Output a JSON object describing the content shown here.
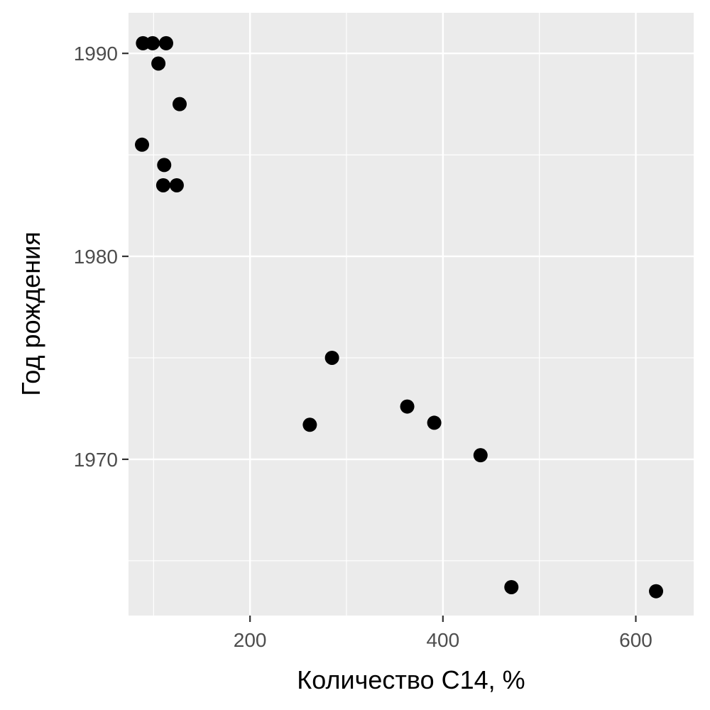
{
  "chart_data": {
    "type": "scatter",
    "title": "",
    "xlabel": "Количество С14, %",
    "ylabel": "Год рождения",
    "xlim": [
      74,
      660
    ],
    "ylim": [
      1962.3,
      1992.0
    ],
    "x_ticks": [
      {
        "value": 200,
        "label": "200"
      },
      {
        "value": 400,
        "label": "400"
      },
      {
        "value": 600,
        "label": "600"
      }
    ],
    "y_ticks": [
      {
        "value": 1970,
        "label": "1970"
      },
      {
        "value": 1980,
        "label": "1980"
      },
      {
        "value": 1990,
        "label": "1990"
      }
    ],
    "x_minor": [
      100,
      300,
      500
    ],
    "y_minor": [
      1965,
      1975,
      1985
    ],
    "grid": true,
    "panel_background": "#ebebeb",
    "grid_color": "#ffffff",
    "point_color": "#000000",
    "series": [
      {
        "points": [
          {
            "x": 89,
            "y": 1990.5
          },
          {
            "x": 99,
            "y": 1990.5
          },
          {
            "x": 113,
            "y": 1990.5
          },
          {
            "x": 105,
            "y": 1989.5
          },
          {
            "x": 127,
            "y": 1987.5
          },
          {
            "x": 88,
            "y": 1985.5
          },
          {
            "x": 111,
            "y": 1984.5
          },
          {
            "x": 110,
            "y": 1983.5
          },
          {
            "x": 124,
            "y": 1983.5
          },
          {
            "x": 285,
            "y": 1975.0
          },
          {
            "x": 262,
            "y": 1971.7
          },
          {
            "x": 363,
            "y": 1972.6
          },
          {
            "x": 391,
            "y": 1971.8
          },
          {
            "x": 439,
            "y": 1970.2
          },
          {
            "x": 471,
            "y": 1963.7
          },
          {
            "x": 621,
            "y": 1963.5
          }
        ]
      }
    ]
  }
}
